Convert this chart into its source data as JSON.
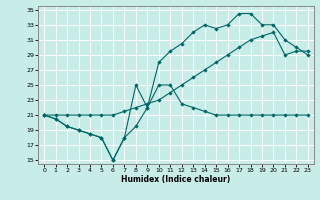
{
  "xlabel": "Humidex (Indice chaleur)",
  "bg_color": "#c8ece8",
  "grid_color": "#ffffff",
  "line_color": "#006666",
  "xlim": [
    -0.5,
    23.5
  ],
  "ylim": [
    14.5,
    35.5
  ],
  "xticks": [
    0,
    1,
    2,
    3,
    4,
    5,
    6,
    7,
    8,
    9,
    10,
    11,
    12,
    13,
    14,
    15,
    16,
    17,
    18,
    19,
    20,
    21,
    22,
    23
  ],
  "yticks": [
    15,
    17,
    19,
    21,
    23,
    25,
    27,
    29,
    31,
    33,
    35
  ],
  "line1_x": [
    0,
    1,
    2,
    3,
    4,
    5,
    6,
    7,
    8,
    9,
    10,
    11,
    12,
    13,
    14,
    15,
    16,
    17,
    18,
    19,
    20,
    21,
    22,
    23
  ],
  "line1_y": [
    21,
    20.5,
    19.5,
    19.0,
    18.5,
    18.0,
    15.0,
    18.0,
    19.5,
    22.0,
    25.0,
    25.0,
    22.5,
    22.0,
    21.5,
    21.0,
    21.0,
    21.0,
    21.0,
    21.0,
    21.0,
    21.0,
    21.0,
    21.0
  ],
  "line2_x": [
    0,
    1,
    2,
    3,
    4,
    5,
    6,
    7,
    8,
    9,
    10,
    11,
    12,
    13,
    14,
    15,
    16,
    17,
    18,
    19,
    20,
    21,
    22,
    23
  ],
  "line2_y": [
    21,
    20.5,
    19.5,
    19.0,
    18.5,
    18.0,
    15.0,
    18.0,
    25.0,
    22.0,
    28.0,
    29.5,
    30.5,
    32.0,
    33.0,
    32.5,
    33.0,
    34.5,
    34.5,
    33.0,
    33.0,
    31.0,
    30.0,
    29.0
  ],
  "line3_x": [
    0,
    1,
    2,
    3,
    4,
    5,
    6,
    7,
    8,
    9,
    10,
    11,
    12,
    13,
    14,
    15,
    16,
    17,
    18,
    19,
    20,
    21,
    22,
    23
  ],
  "line3_y": [
    21,
    21.0,
    21.0,
    21.0,
    21.0,
    21.0,
    21.0,
    21.5,
    22.0,
    22.5,
    23.0,
    24.0,
    25.0,
    26.0,
    27.0,
    28.0,
    29.0,
    30.0,
    31.0,
    31.5,
    32.0,
    29.0,
    29.5,
    29.5
  ]
}
